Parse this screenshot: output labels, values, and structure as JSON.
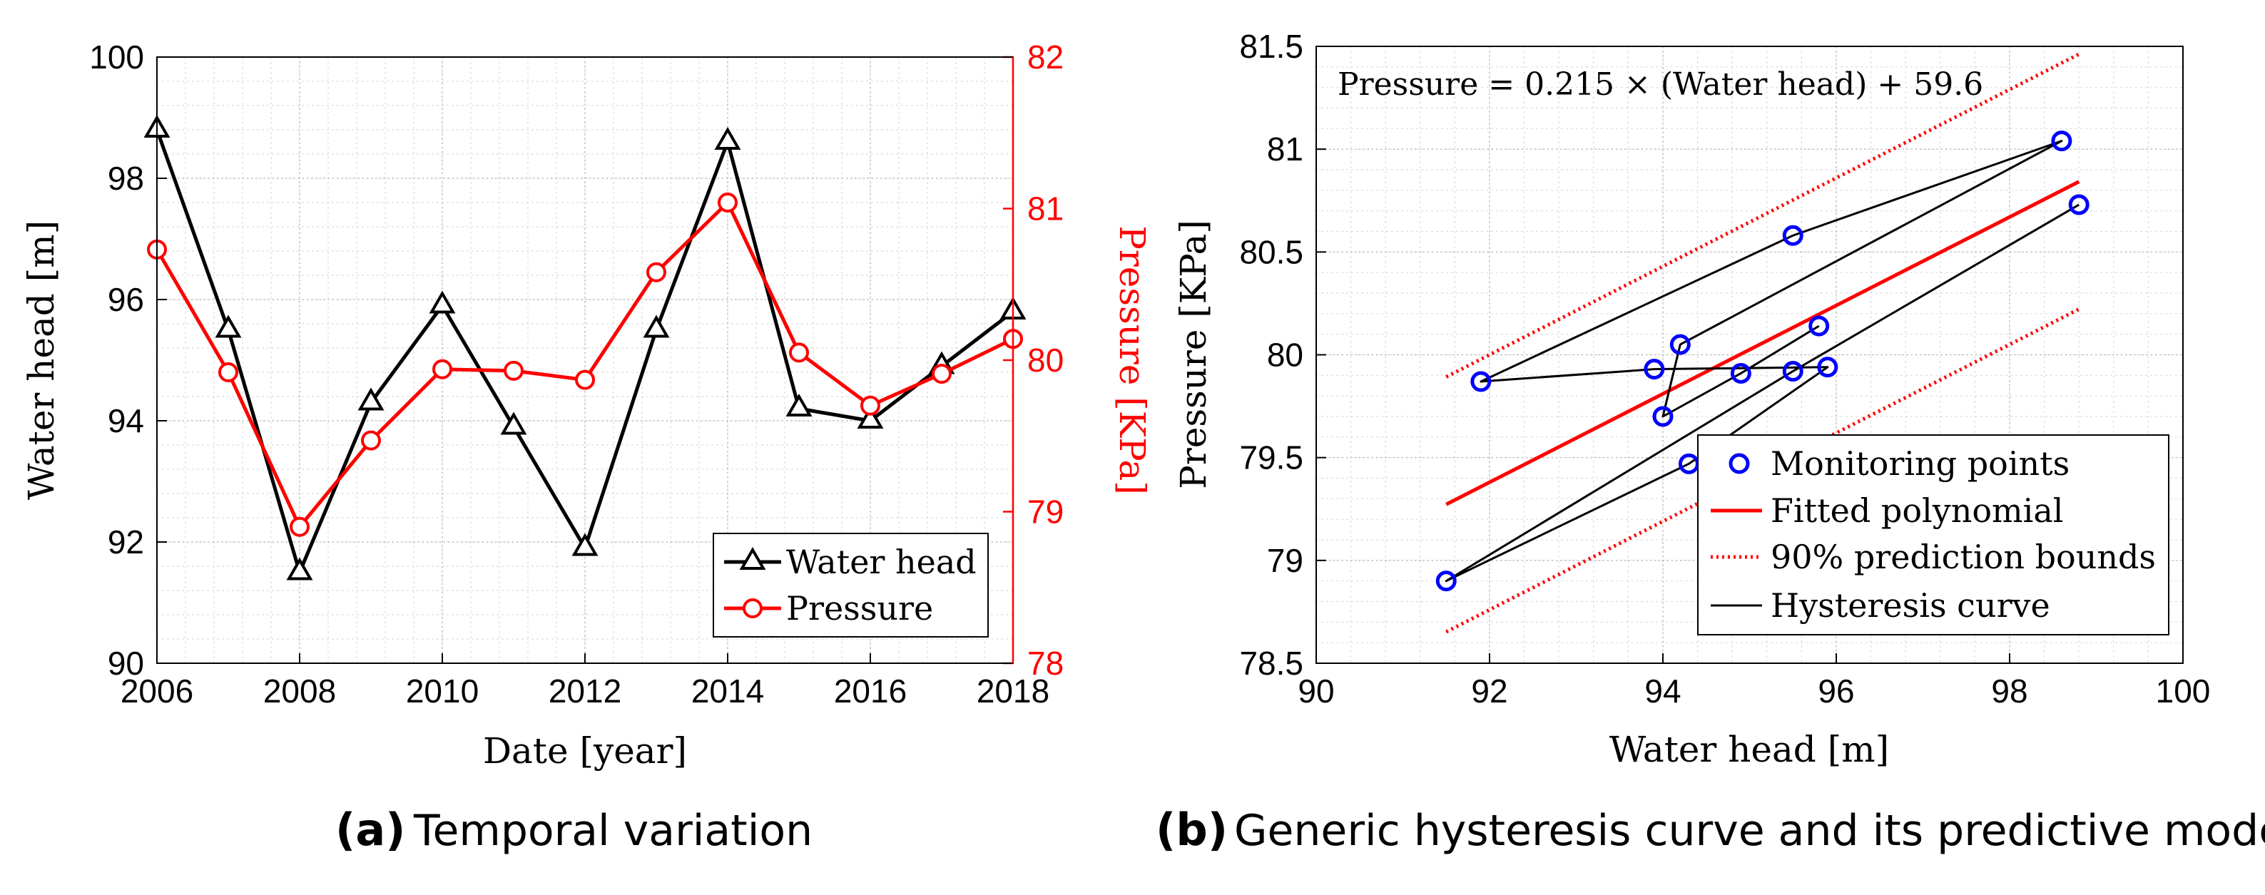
{
  "chart_data": [
    {
      "type": "line",
      "caption_letter": "(a)",
      "caption_text": "Temporal variation",
      "xlabel": "Date [year]",
      "ylabel_left": "Water head [m]",
      "ylabel_right": "Pressure [KPa]",
      "xlim": [
        2006,
        2018
      ],
      "ylim_left": [
        90,
        100
      ],
      "ylim_right": [
        78,
        82
      ],
      "x_ticks": [
        "2006",
        "2008",
        "2010",
        "2012",
        "2014",
        "2016",
        "2018"
      ],
      "y_left_ticks": [
        "90",
        "92",
        "94",
        "96",
        "98",
        "100"
      ],
      "y_right_ticks": [
        "78",
        "79",
        "80",
        "81",
        "82"
      ],
      "grid": true,
      "legend_position": "bottom-right",
      "x": [
        2006,
        2007,
        2008,
        2009,
        2010,
        2011,
        2012,
        2013,
        2014,
        2015,
        2016,
        2017,
        2018
      ],
      "series": [
        {
          "name": "Water head",
          "axis": "left",
          "color": "#000000",
          "marker": "triangle",
          "values": [
            98.8,
            95.5,
            91.5,
            94.3,
            95.9,
            93.9,
            91.9,
            95.5,
            98.6,
            94.2,
            94.0,
            94.9,
            95.8
          ]
        },
        {
          "name": "Pressure",
          "axis": "right",
          "color": "#ff0000",
          "marker": "circle",
          "values": [
            80.73,
            79.92,
            78.9,
            79.47,
            79.94,
            79.93,
            79.87,
            80.58,
            81.04,
            80.05,
            79.7,
            79.91,
            80.14
          ]
        }
      ]
    },
    {
      "type": "scatter",
      "caption_letter": "(b)",
      "caption_text": "Generic hysteresis curve and its predictive model",
      "xlabel": "Water head [m]",
      "ylabel": "Pressure [KPa]",
      "xlim": [
        90,
        100
      ],
      "ylim": [
        78.5,
        81.5
      ],
      "x_ticks": [
        "90",
        "92",
        "94",
        "96",
        "98",
        "100"
      ],
      "y_ticks": [
        "78.5",
        "79",
        "79.5",
        "80",
        "80.5",
        "81",
        "81.5"
      ],
      "grid": true,
      "annotation": "Pressure = 0.215 × (Water head) + 59.6",
      "legend_position": "bottom-right",
      "points": {
        "name": "Monitoring points",
        "color": "#0000ff",
        "x": [
          98.8,
          95.5,
          91.5,
          94.3,
          95.9,
          93.9,
          91.9,
          95.5,
          98.6,
          94.2,
          94.0,
          94.9,
          95.8
        ],
        "y": [
          80.73,
          79.92,
          78.9,
          79.47,
          79.94,
          79.93,
          79.87,
          80.58,
          81.04,
          80.05,
          79.7,
          79.91,
          80.14
        ]
      },
      "fit": {
        "name": "Fitted polynomial",
        "color": "#ff0000",
        "slope": 0.215,
        "intercept": 59.6,
        "x_range": [
          91.5,
          98.8
        ]
      },
      "bounds": {
        "name": "90% prediction bounds",
        "color": "#ff0000",
        "offset": 0.62,
        "x_range": [
          91.5,
          98.8
        ]
      },
      "hysteresis": {
        "name": "Hysteresis curve",
        "color": "#000000"
      }
    }
  ]
}
